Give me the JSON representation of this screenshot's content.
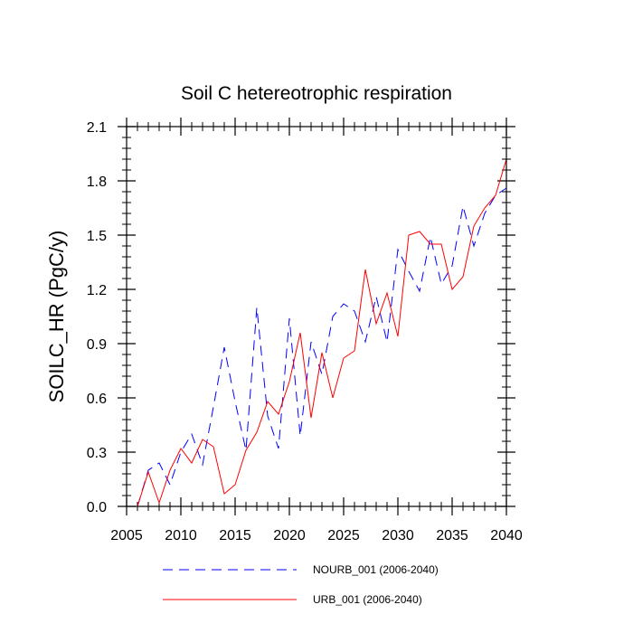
{
  "chart_data": {
    "type": "line",
    "title": "Soil C hetereotrophic respiration",
    "xlabel": "",
    "ylabel": "SOILC_HR  (PgC/y)",
    "xlim": [
      2005,
      2040
    ],
    "ylim": [
      0.0,
      2.1
    ],
    "x_ticks": [
      2005,
      2010,
      2015,
      2020,
      2025,
      2030,
      2035,
      2040
    ],
    "y_ticks": [
      0.0,
      0.3,
      0.6,
      0.9,
      1.2,
      1.5,
      1.8,
      2.1
    ],
    "x_tick_labels": [
      "2005",
      "2010",
      "2015",
      "2020",
      "2025",
      "2030",
      "2035",
      "2040"
    ],
    "y_tick_labels": [
      "0.0",
      "0.3",
      "0.6",
      "0.9",
      "1.2",
      "1.5",
      "1.8",
      "2.1"
    ],
    "x": [
      2006,
      2007,
      2008,
      2009,
      2010,
      2011,
      2012,
      2013,
      2014,
      2015,
      2016,
      2017,
      2018,
      2019,
      2020,
      2021,
      2022,
      2023,
      2024,
      2025,
      2026,
      2027,
      2028,
      2029,
      2030,
      2031,
      2032,
      2033,
      2034,
      2035,
      2036,
      2037,
      2038,
      2039,
      2040
    ],
    "series": [
      {
        "name": "NOURB_001 (2006-2040)",
        "color": "#0000ff",
        "style": "dashed",
        "values": [
          0.0,
          0.2,
          0.24,
          0.12,
          0.3,
          0.4,
          0.23,
          0.55,
          0.88,
          0.58,
          0.31,
          1.1,
          0.5,
          0.32,
          1.04,
          0.39,
          0.91,
          0.73,
          1.05,
          1.12,
          1.08,
          0.91,
          1.16,
          0.91,
          1.42,
          1.3,
          1.19,
          1.49,
          1.23,
          1.33,
          1.66,
          1.44,
          1.62,
          1.72,
          1.76
        ]
      },
      {
        "name": "URB_001 (2006-2040)",
        "color": "#ff0000",
        "style": "solid",
        "values": [
          0.0,
          0.19,
          0.02,
          0.2,
          0.32,
          0.24,
          0.37,
          0.33,
          0.07,
          0.12,
          0.31,
          0.41,
          0.58,
          0.51,
          0.69,
          0.96,
          0.49,
          0.85,
          0.6,
          0.82,
          0.86,
          1.31,
          1.01,
          1.18,
          0.94,
          1.5,
          1.52,
          1.45,
          1.45,
          1.2,
          1.27,
          1.55,
          1.65,
          1.72,
          1.92
        ]
      }
    ],
    "legend_position": "bottom"
  }
}
